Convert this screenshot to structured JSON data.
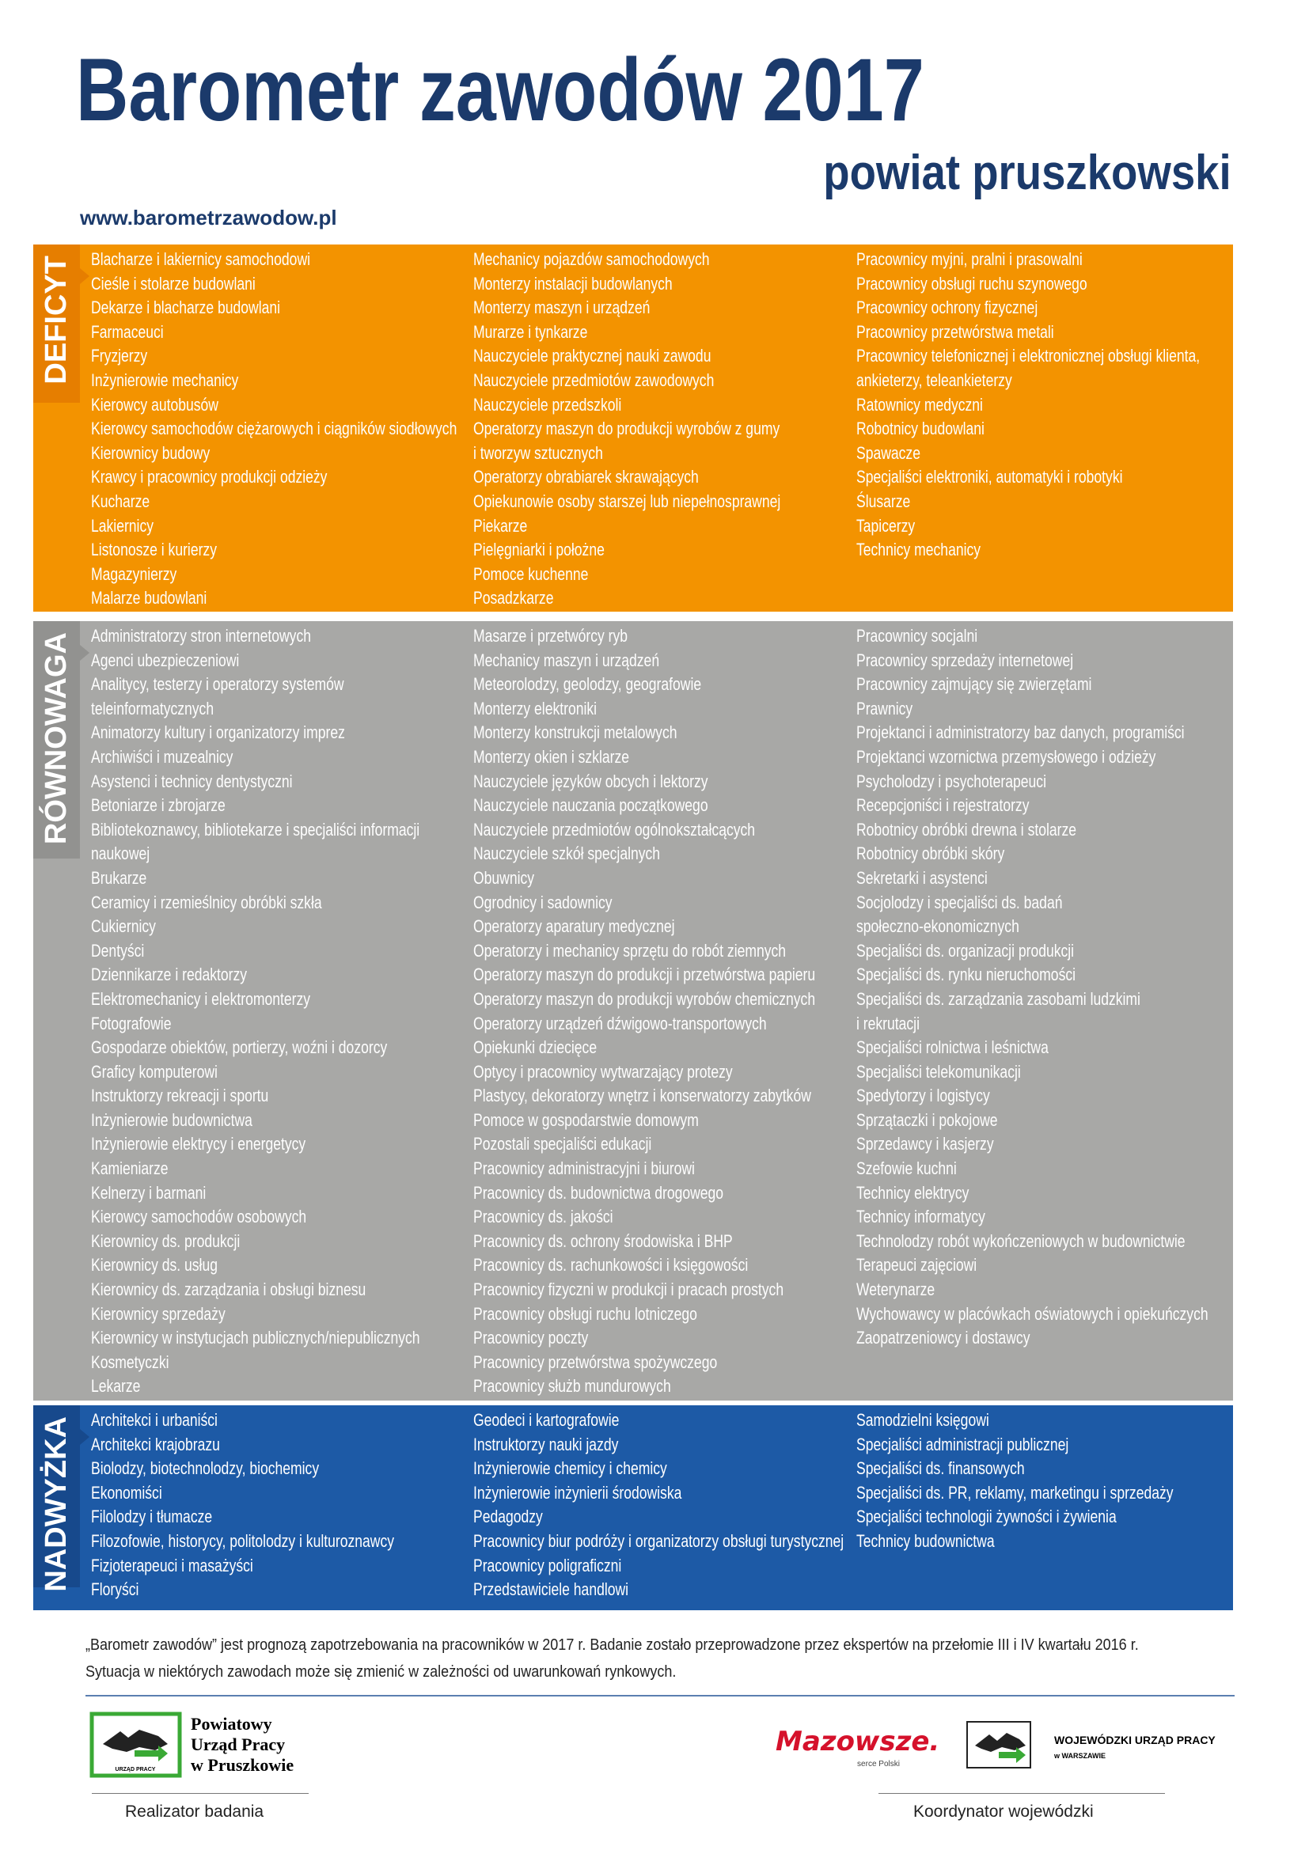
{
  "header": {
    "title": "Barometr zawodów 2017",
    "subtitle": "powiat pruszkowski",
    "url": "www.barometrzawodow.pl"
  },
  "sections": [
    {
      "label": "DEFICYT",
      "columns": [
        [
          "Blacharze i lakiernicy samochodowi",
          "Cieśle i stolarze budowlani",
          "Dekarze i blacharze budowlani",
          "Farmaceuci",
          "Fryzjerzy",
          "Inżynierowie mechanicy",
          "Kierowcy autobusów",
          "Kierowcy samochodów ciężarowych i ciągników siodłowych",
          "Kierownicy budowy",
          "Krawcy i pracownicy produkcji odzieży",
          "Kucharze",
          "Lakiernicy",
          "Listonosze i kurierzy",
          "Magazynierzy",
          "Malarze budowlani"
        ],
        [
          "Mechanicy pojazdów samochodowych",
          "Monterzy instalacji budowlanych",
          "Monterzy maszyn i urządzeń",
          "Murarze i tynkarze",
          "Nauczyciele praktycznej nauki zawodu",
          "Nauczyciele przedmiotów zawodowych",
          "Nauczyciele przedszkoli",
          "Operatorzy maszyn do produkcji wyrobów z gumy",
          "i tworzyw sztucznych",
          "Operatorzy obrabiarek skrawających",
          "Opiekunowie osoby starszej lub niepełnosprawnej",
          "Piekarze",
          "Pielęgniarki i położne",
          "Pomoce kuchenne",
          "Posadzkarze"
        ],
        [
          "Pracownicy myjni, pralni i prasowalni",
          "Pracownicy obsługi ruchu szynowego",
          "Pracownicy ochrony fizycznej",
          "Pracownicy przetwórstwa metali",
          "Pracownicy telefonicznej i elektronicznej obsługi klienta,",
          "ankieterzy, teleankieterzy",
          "Ratownicy medyczni",
          "Robotnicy budowlani",
          "Spawacze",
          "Specjaliści elektroniki, automatyki i robotyki",
          "Ślusarze",
          "Tapicerzy",
          "Technicy mechanicy"
        ]
      ]
    },
    {
      "label": "RÓWNOWAGA",
      "columns": [
        [
          "Administratorzy stron internetowych",
          "Agenci ubezpieczeniowi",
          "Analitycy, testerzy i operatorzy systemów",
          "teleinformatycznych",
          "Animatorzy kultury i organizatorzy imprez",
          "Archiwiści i muzealnicy",
          "Asystenci i technicy dentystyczni",
          "Betoniarze i zbrojarze",
          "Bibliotekoznawcy, bibliotekarze i specjaliści informacji",
          "naukowej",
          "Brukarze",
          "Ceramicy i rzemieślnicy obróbki szkła",
          "Cukiernicy",
          "Dentyści",
          "Dziennikarze i redaktorzy",
          "Elektromechanicy i elektromonterzy",
          "Fotografowie",
          "Gospodarze obiektów, portierzy, woźni i dozorcy",
          "Graficy komputerowi",
          "Instruktorzy rekreacji i sportu",
          "Inżynierowie budownictwa",
          "Inżynierowie elektrycy i energetycy",
          "Kamieniarze",
          "Kelnerzy i barmani",
          "Kierowcy samochodów osobowych",
          "Kierownicy ds. produkcji",
          "Kierownicy ds. usług",
          "Kierownicy ds. zarządzania i obsługi biznesu",
          "Kierownicy sprzedaży",
          "Kierownicy w instytucjach publicznych/niepublicznych",
          "Kosmetyczki",
          "Lekarze"
        ],
        [
          "Masarze i przetwórcy ryb",
          "Mechanicy maszyn i urządzeń",
          "Meteorolodzy, geolodzy, geografowie",
          "Monterzy elektroniki",
          "Monterzy konstrukcji metalowych",
          "Monterzy okien i szklarze",
          "Nauczyciele języków obcych i lektorzy",
          "Nauczyciele nauczania początkowego",
          "Nauczyciele przedmiotów ogólnokształcących",
          "Nauczyciele szkół specjalnych",
          "Obuwnicy",
          "Ogrodnicy i sadownicy",
          "Operatorzy aparatury medycznej",
          "Operatorzy i mechanicy sprzętu do robót ziemnych",
          "Operatorzy maszyn do produkcji i przetwórstwa papieru",
          "Operatorzy maszyn do produkcji wyrobów chemicznych",
          "Operatorzy urządzeń dźwigowo-transportowych",
          "Opiekunki dziecięce",
          "Optycy i pracownicy wytwarzający protezy",
          "Plastycy, dekoratorzy wnętrz i konserwatorzy zabytków",
          "Pomoce w gospodarstwie domowym",
          "Pozostali specjaliści edukacji",
          "Pracownicy administracyjni i biurowi",
          "Pracownicy ds. budownictwa drogowego",
          "Pracownicy ds. jakości",
          "Pracownicy ds. ochrony środowiska i BHP",
          "Pracownicy ds. rachunkowości i księgowości",
          "Pracownicy fizyczni w produkcji i pracach prostych",
          "Pracownicy obsługi ruchu lotniczego",
          "Pracownicy poczty",
          "Pracownicy przetwórstwa spożywczego",
          "Pracownicy służb mundurowych"
        ],
        [
          "Pracownicy socjalni",
          "Pracownicy sprzedaży internetowej",
          "Pracownicy zajmujący się zwierzętami",
          "Prawnicy",
          "Projektanci i administratorzy baz danych, programiści",
          "Projektanci wzornictwa przemysłowego i odzieży",
          "Psycholodzy i psychoterapeuci",
          "Recepcjoniści i rejestratorzy",
          "Robotnicy obróbki drewna i stolarze",
          "Robotnicy obróbki skóry",
          "Sekretarki i asystenci",
          "Socjolodzy i specjaliści ds. badań",
          "społeczno-ekonomicznych",
          "Specjaliści ds. organizacji produkcji",
          "Specjaliści ds. rynku nieruchomości",
          "Specjaliści ds. zarządzania zasobami ludzkimi",
          "i rekrutacji",
          "Specjaliści rolnictwa i leśnictwa",
          "Specjaliści telekomunikacji",
          "Spedytorzy i logistycy",
          "Sprzątaczki i pokojowe",
          "Sprzedawcy i kasjerzy",
          "Szefowie kuchni",
          "Technicy elektrycy",
          "Technicy informatycy",
          "Technolodzy robót wykończeniowych w budownictwie",
          "Terapeuci zajęciowi",
          "Weterynarze",
          "Wychowawcy w placówkach oświatowych i opiekuńczych",
          "Zaopatrzeniowcy i dostawcy"
        ]
      ]
    },
    {
      "label": "NADWYŻKA",
      "columns": [
        [
          "Architekci i urbaniści",
          "Architekci krajobrazu",
          "Biolodzy, biotechnolodzy, biochemicy",
          "Ekonomiści",
          "Filolodzy i tłumacze",
          "Filozofowie, historycy, politolodzy i kulturoznawcy",
          "Fizjoterapeuci i masażyści",
          "Floryści"
        ],
        [
          "Geodeci i kartografowie",
          "Instruktorzy nauki jazdy",
          "Inżynierowie chemicy i chemicy",
          "Inżynierowie inżynierii środowiska",
          "Pedagodzy",
          "Pracownicy biur podróży i organizatorzy obsługi turystycznej",
          "Pracownicy poligraficzni",
          "Przedstawiciele handlowi"
        ],
        [
          "Samodzielni księgowi",
          "Specjaliści administracji publicznej",
          "Specjaliści ds. finansowych",
          "Specjaliści ds. PR, reklamy, marketingu i sprzedaży",
          "Specjaliści technologii żywności i żywienia",
          "Technicy budownictwa"
        ]
      ]
    }
  ],
  "note": [
    "„Barometr zawodów” jest prognozą zapotrzebowania na pracowników w 2017 r. Badanie zostało przeprowadzone przez ekspertów na przełomie III i IV kwartału 2016 r.",
    "Sytuacja w niektórych zawodach może się zmienić w zależności od uwarunkowań rynkowych."
  ],
  "footer": {
    "left": {
      "logo_lines": [
        "Powiatowy",
        "Urząd Pracy",
        "w Pruszkowie"
      ],
      "logo_small": "URZĄD PRACY",
      "caption": "Realizator badania"
    },
    "right": {
      "mazowsze": "Mazowsze.",
      "mazowsze_tagline": "serce Polski",
      "logo_lines": [
        "WOJEWÓDZKI URZĄD PRACY",
        "w WARSZAWIE"
      ],
      "caption": "Koordynator wojewódzki"
    }
  }
}
